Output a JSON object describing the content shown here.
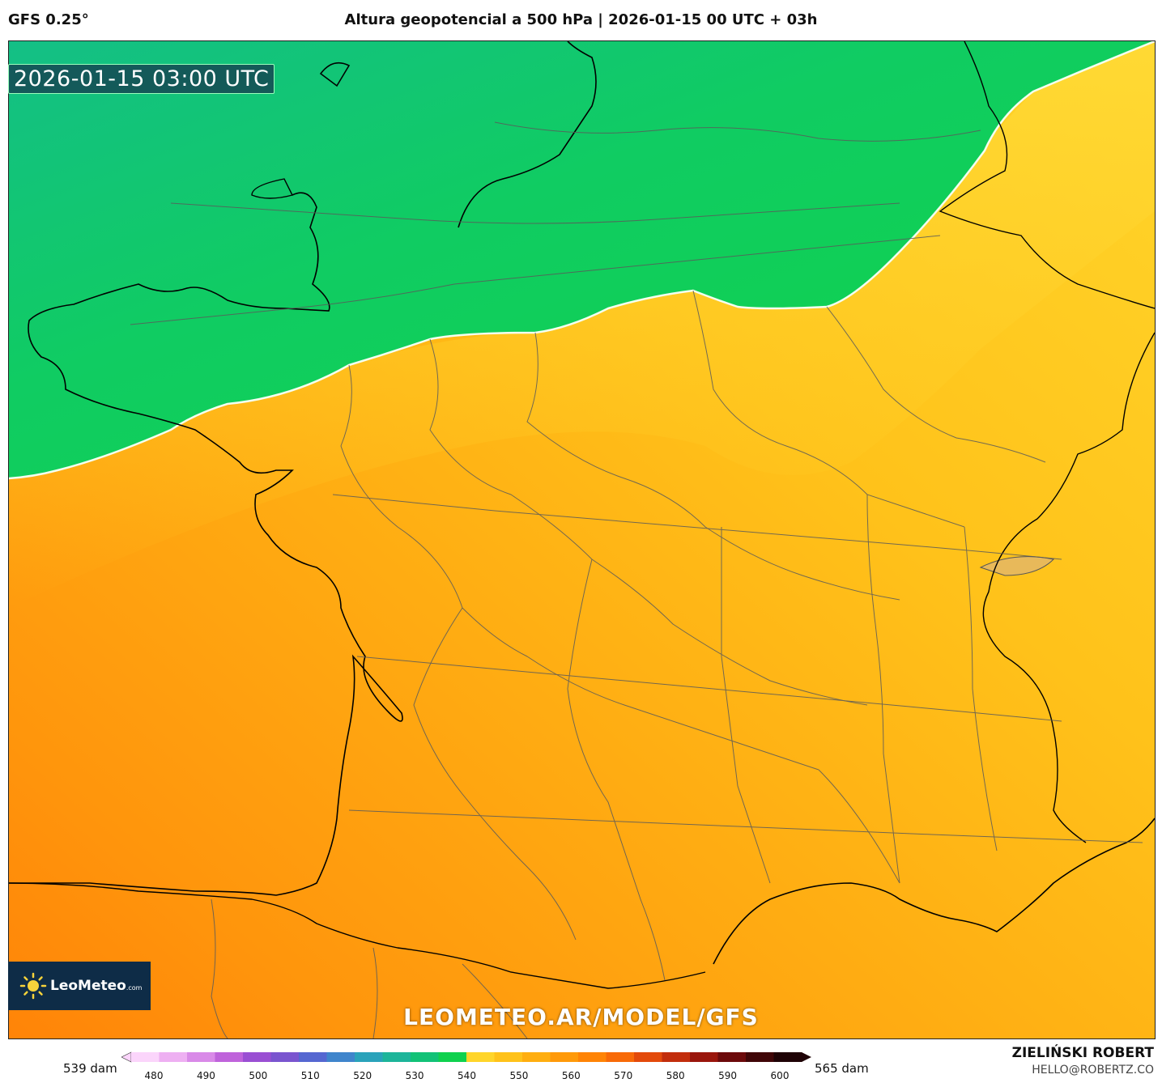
{
  "header": {
    "model": "GFS 0.25°",
    "title": "Altura geopotencial a 500 hPa | 2026-01-15 00 UTC + 03h"
  },
  "map": {
    "timestamp": "2026-01-15 03:00 UTC",
    "watermark": "LEOMETEO.AR/MODEL/GFS",
    "logo_text": "LeoMeteo",
    "logo_suffix": ".com"
  },
  "legend": {
    "min_label": "539 dam",
    "max_label": "565 dam",
    "ticks": [
      "480",
      "490",
      "500",
      "510",
      "520",
      "530",
      "540",
      "550",
      "560",
      "570",
      "580",
      "590",
      "600"
    ],
    "colors": [
      "#fbd5fb",
      "#eeb0f2",
      "#d98ae8",
      "#bf63db",
      "#9a4fd3",
      "#7a55cf",
      "#5567d1",
      "#3f85cc",
      "#2aa3ba",
      "#1db59a",
      "#12c277",
      "#0fd14e",
      "#ffd52a",
      "#ffc21a",
      "#ffae10",
      "#ff9a0a",
      "#ff8406",
      "#f86a08",
      "#e34a0b",
      "#c22d0c",
      "#9a160c",
      "#6c0a0b",
      "#400608",
      "#1f0306"
    ]
  },
  "footer": {
    "author": "ZIELIŃSKI ROBERT",
    "email": "HELLO@ROBERTZ.CO"
  }
}
